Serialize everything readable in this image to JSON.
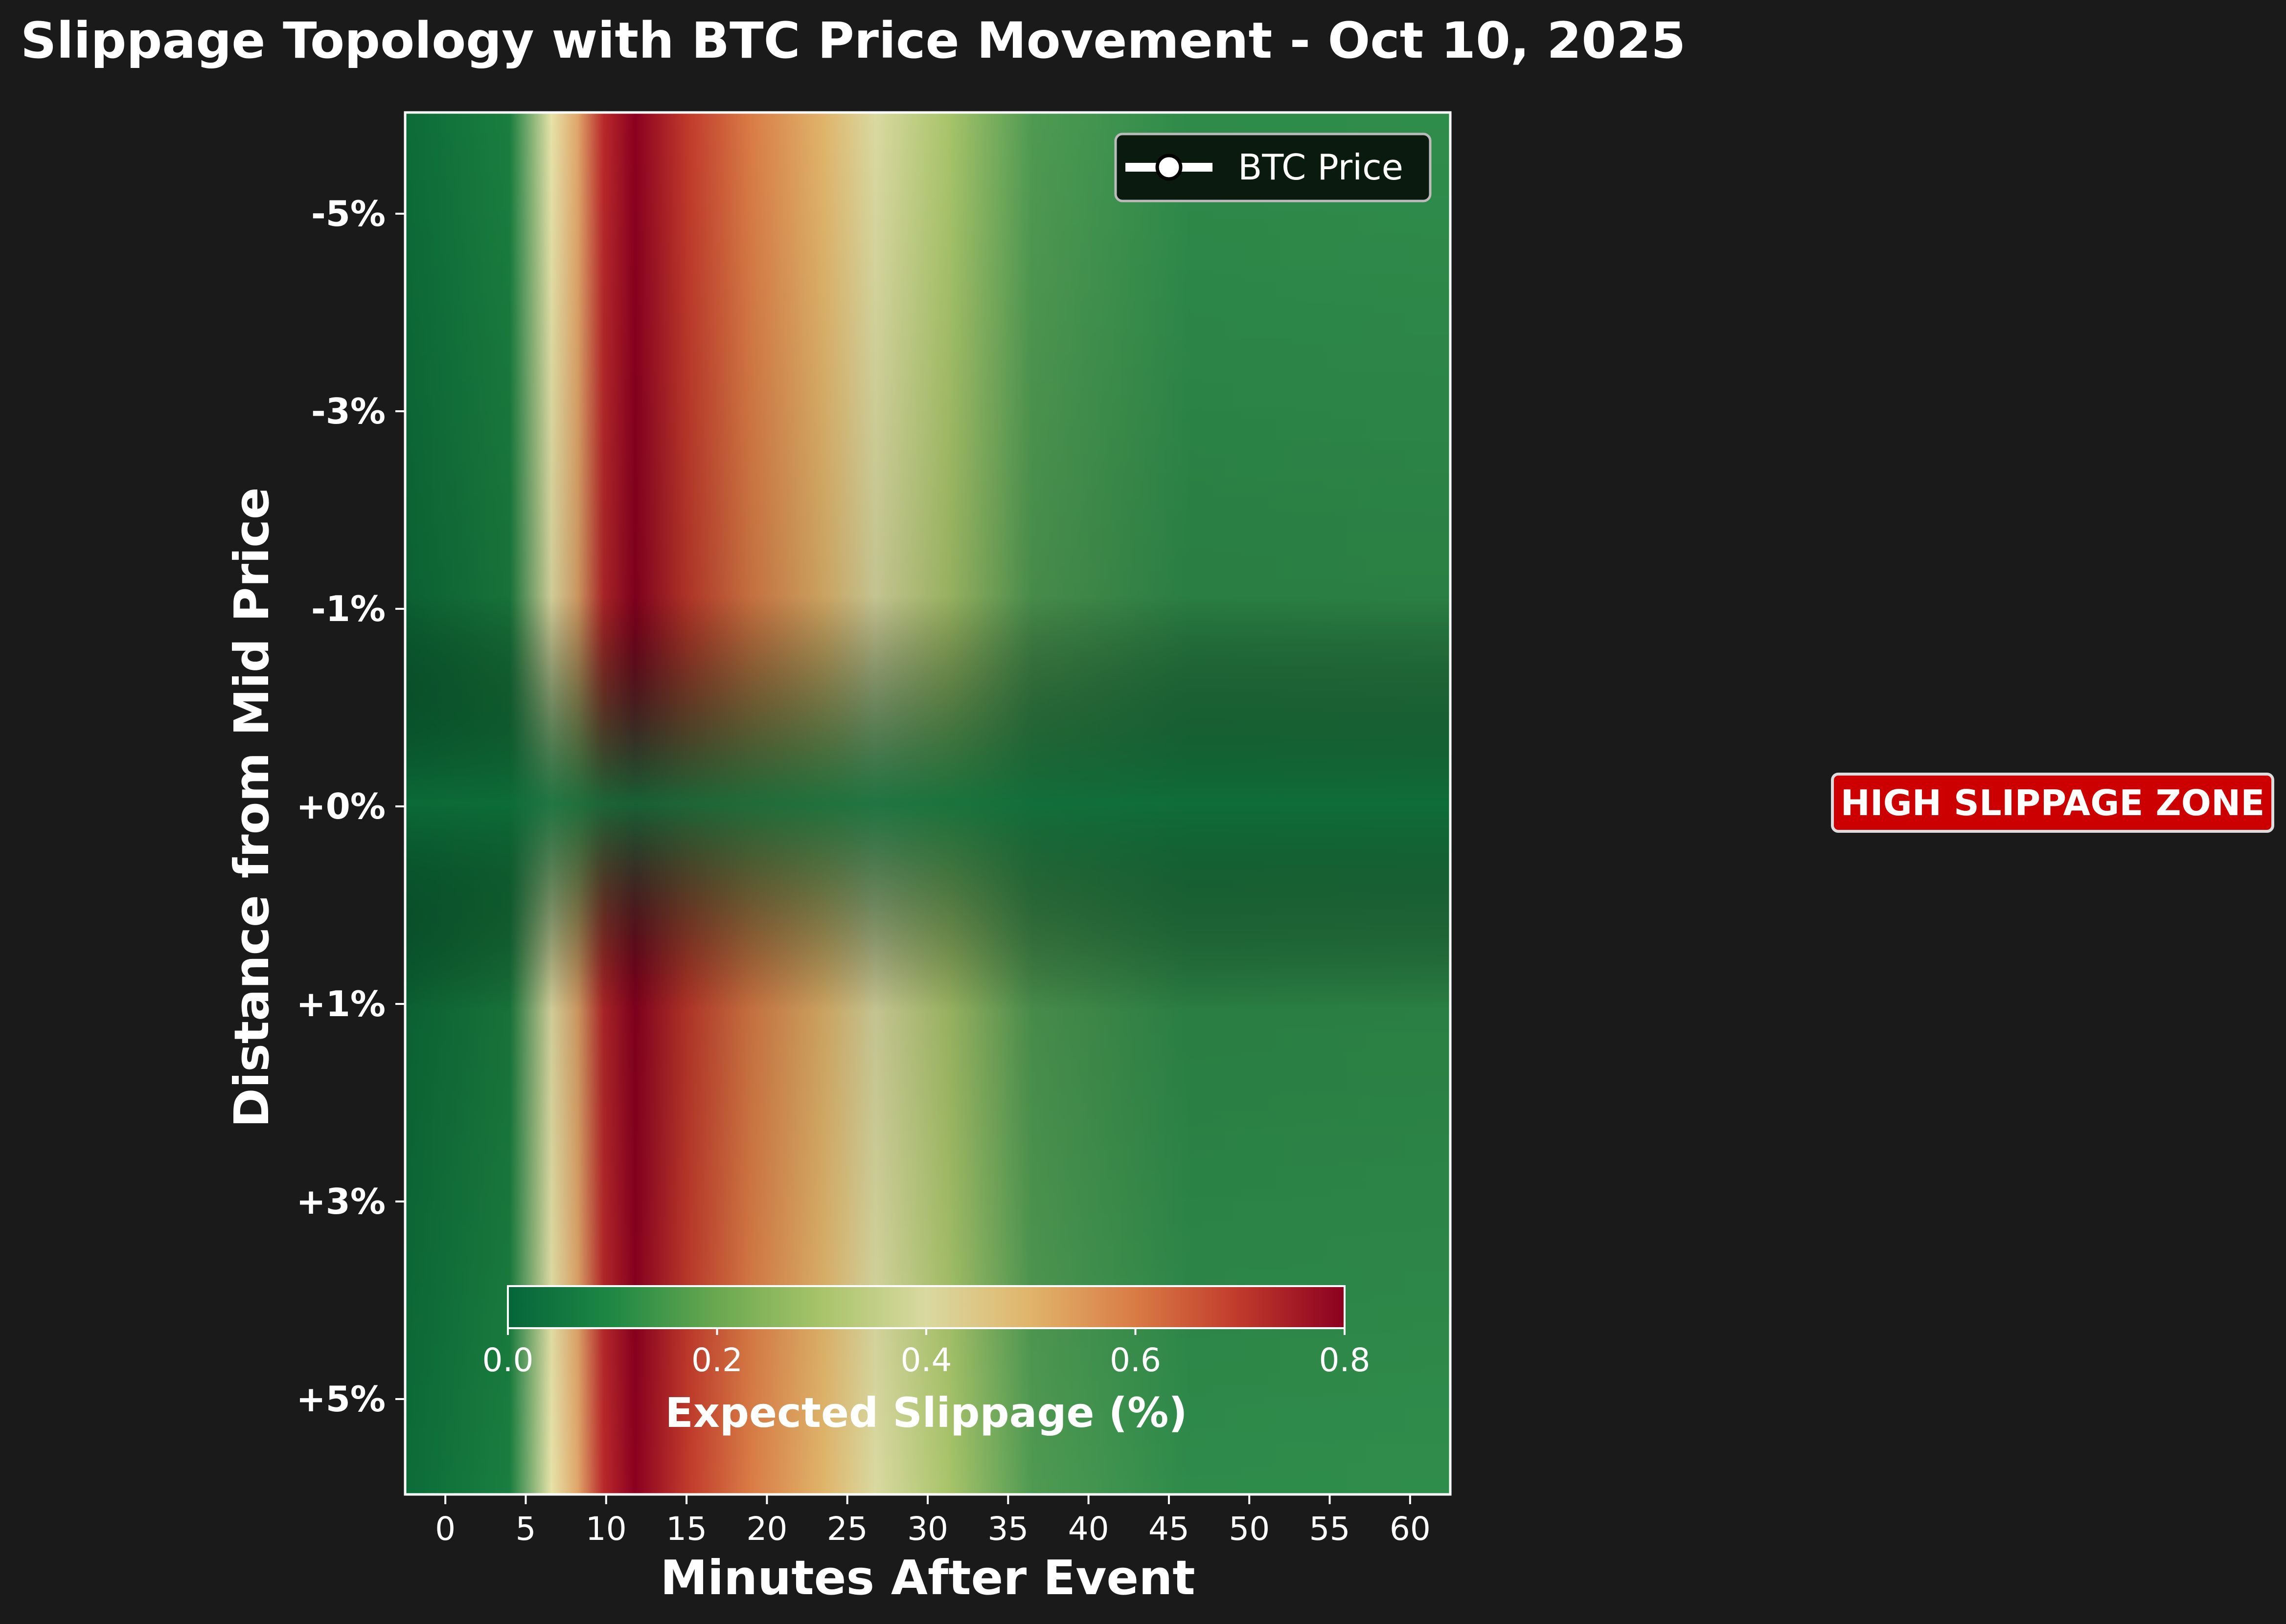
{
  "chart_data": {
    "type": "heatmap",
    "title": "Slippage Topology with BTC Price Movement - Oct 10, 2025",
    "xlabel": "Minutes After Event",
    "ylabel": "Distance from Mid Price",
    "x_ticks": [
      0,
      5,
      10,
      15,
      20,
      25,
      30,
      35,
      40,
      45,
      50,
      55,
      60
    ],
    "xlim": [
      -2.5,
      62.5
    ],
    "y_ticks": [
      "-5%",
      "-3%",
      "-1%",
      "+0%",
      "+1%",
      "+3%",
      "+5%"
    ],
    "colorbar": {
      "label": "Expected Slippage (%)",
      "ticks": [
        "0.0",
        "0.2",
        "0.4",
        "0.6",
        "0.8"
      ],
      "range": [
        0.0,
        0.8
      ],
      "orientation": "horizontal",
      "placement": "inside-bottom",
      "colormap": [
        "#05653a",
        "#1e8844",
        "#6aa84f",
        "#a8c46a",
        "#d9d9a0",
        "#e0b46a",
        "#d97b45",
        "#c0392b",
        "#8b0020"
      ]
    },
    "legend": {
      "placement": "top-right",
      "entries": [
        "BTC Price"
      ]
    },
    "annotations": {
      "zone_label": "HIGH SLIPPAGE ZONE"
    },
    "grid": false
  },
  "colors": {
    "background": "#1a1a1a",
    "line": "#ffffff",
    "marker_edge": "#000000",
    "zone_badge": "#cc0000"
  }
}
